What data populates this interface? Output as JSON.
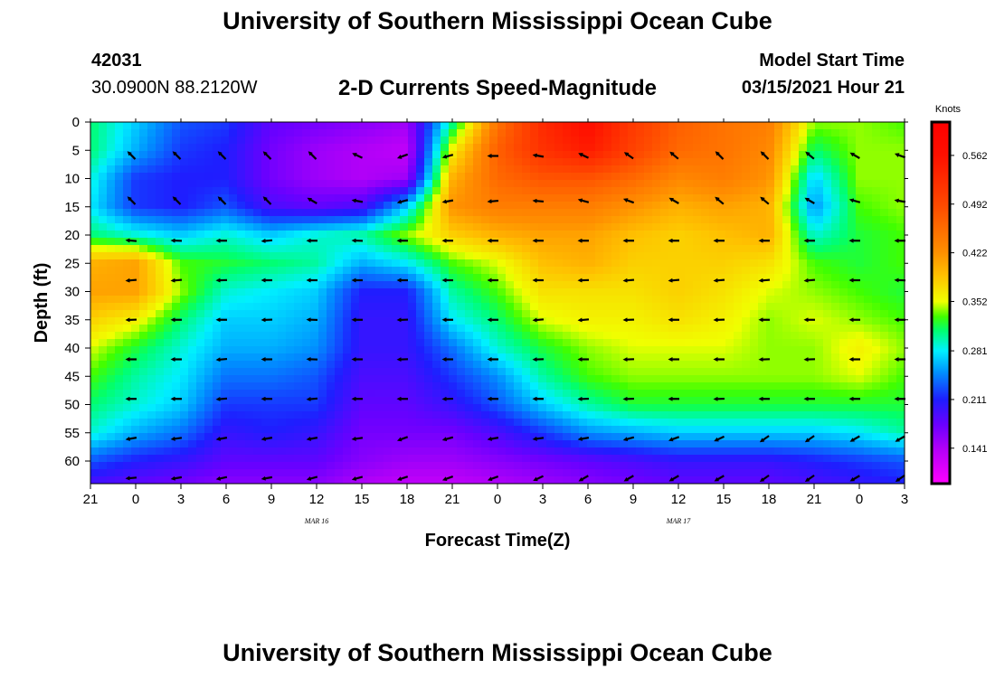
{
  "header": {
    "title": "University of Southern Mississippi Ocean Cube",
    "station_id": "42031",
    "station_coords": "30.0900N 88.2120W",
    "chart_title": "2-D Currents Speed-Magnitude",
    "model_label": "Model Start Time",
    "model_time": "03/15/2021 Hour 21"
  },
  "footer": {
    "title": "University of Southern Mississippi Ocean Cube"
  },
  "chart_data": {
    "type": "heatmap",
    "title": "2-D Currents Speed-Magnitude",
    "xlabel": "Forecast Time(Z)",
    "ylabel": "Depth (ft)",
    "x_ticks": [
      "21",
      "0",
      "3",
      "6",
      "9",
      "12",
      "15",
      "18",
      "21",
      "0",
      "3",
      "6",
      "9",
      "12",
      "15",
      "18",
      "21",
      "0",
      "3"
    ],
    "x_range_hours": [
      0,
      54
    ],
    "date_labels": [
      {
        "label": "MAR 16",
        "hour": 15
      },
      {
        "label": "MAR 17",
        "hour": 39
      }
    ],
    "y_ticks": [
      0,
      5,
      10,
      15,
      20,
      25,
      30,
      35,
      40,
      45,
      50,
      55,
      60
    ],
    "ylim": [
      0,
      64
    ],
    "colorbar": {
      "title": "Knots",
      "ticks": [
        0.562,
        0.492,
        0.422,
        0.352,
        0.281,
        0.211,
        0.141
      ],
      "range": [
        0.09,
        0.61
      ],
      "stops": [
        {
          "v": 0.09,
          "color": "#ff00ff"
        },
        {
          "v": 0.141,
          "color": "#b000f8"
        },
        {
          "v": 0.175,
          "color": "#6a00ff"
        },
        {
          "v": 0.211,
          "color": "#1e1eff"
        },
        {
          "v": 0.25,
          "color": "#0090ff"
        },
        {
          "v": 0.281,
          "color": "#00f0ff"
        },
        {
          "v": 0.31,
          "color": "#00ff70"
        },
        {
          "v": 0.33,
          "color": "#40ff00"
        },
        {
          "v": 0.352,
          "color": "#f0ff00"
        },
        {
          "v": 0.39,
          "color": "#ffc000"
        },
        {
          "v": 0.422,
          "color": "#ff9000"
        },
        {
          "v": 0.492,
          "color": "#ff4800"
        },
        {
          "v": 0.562,
          "color": "#ff1000"
        },
        {
          "v": 0.61,
          "color": "#ff0000"
        }
      ]
    },
    "grid_x_hours": [
      0,
      3,
      6,
      9,
      12,
      15,
      18,
      21,
      24,
      27,
      30,
      33,
      36,
      39,
      42,
      45,
      48,
      51,
      54
    ],
    "grid_y_depths": [
      0,
      5,
      10,
      15,
      20,
      25,
      30,
      35,
      40,
      45,
      50,
      55,
      60,
      64
    ],
    "speed_grid": [
      [
        0.31,
        0.27,
        0.23,
        0.22,
        0.18,
        0.17,
        0.16,
        0.15,
        0.3,
        0.45,
        0.53,
        0.57,
        0.51,
        0.47,
        0.45,
        0.44,
        0.34,
        0.34,
        0.33
      ],
      [
        0.31,
        0.26,
        0.22,
        0.21,
        0.17,
        0.15,
        0.14,
        0.13,
        0.36,
        0.47,
        0.52,
        0.55,
        0.5,
        0.46,
        0.45,
        0.43,
        0.31,
        0.34,
        0.34
      ],
      [
        0.29,
        0.22,
        0.21,
        0.21,
        0.17,
        0.15,
        0.14,
        0.15,
        0.4,
        0.46,
        0.48,
        0.48,
        0.46,
        0.43,
        0.44,
        0.42,
        0.27,
        0.34,
        0.34
      ],
      [
        0.28,
        0.22,
        0.21,
        0.23,
        0.19,
        0.18,
        0.19,
        0.27,
        0.42,
        0.44,
        0.44,
        0.44,
        0.42,
        0.4,
        0.41,
        0.4,
        0.25,
        0.33,
        0.34
      ],
      [
        0.31,
        0.29,
        0.27,
        0.29,
        0.27,
        0.29,
        0.3,
        0.34,
        0.38,
        0.4,
        0.41,
        0.41,
        0.39,
        0.38,
        0.39,
        0.4,
        0.29,
        0.32,
        0.33
      ],
      [
        0.4,
        0.41,
        0.33,
        0.32,
        0.31,
        0.3,
        0.26,
        0.28,
        0.33,
        0.35,
        0.39,
        0.4,
        0.38,
        0.38,
        0.38,
        0.37,
        0.33,
        0.32,
        0.33
      ],
      [
        0.41,
        0.41,
        0.34,
        0.29,
        0.28,
        0.27,
        0.21,
        0.21,
        0.3,
        0.33,
        0.37,
        0.37,
        0.37,
        0.38,
        0.37,
        0.35,
        0.34,
        0.33,
        0.32
      ],
      [
        0.38,
        0.36,
        0.31,
        0.27,
        0.27,
        0.26,
        0.2,
        0.2,
        0.28,
        0.31,
        0.35,
        0.36,
        0.36,
        0.37,
        0.36,
        0.34,
        0.35,
        0.34,
        0.33
      ],
      [
        0.35,
        0.32,
        0.29,
        0.26,
        0.26,
        0.25,
        0.2,
        0.2,
        0.24,
        0.29,
        0.32,
        0.34,
        0.35,
        0.35,
        0.35,
        0.34,
        0.34,
        0.36,
        0.34
      ],
      [
        0.33,
        0.3,
        0.28,
        0.24,
        0.24,
        0.23,
        0.19,
        0.19,
        0.22,
        0.25,
        0.3,
        0.33,
        0.34,
        0.34,
        0.34,
        0.34,
        0.34,
        0.35,
        0.33
      ],
      [
        0.31,
        0.29,
        0.27,
        0.22,
        0.22,
        0.22,
        0.18,
        0.18,
        0.2,
        0.23,
        0.27,
        0.3,
        0.32,
        0.32,
        0.32,
        0.32,
        0.32,
        0.32,
        0.32
      ],
      [
        0.29,
        0.26,
        0.24,
        0.2,
        0.21,
        0.2,
        0.17,
        0.17,
        0.17,
        0.19,
        0.22,
        0.25,
        0.26,
        0.27,
        0.27,
        0.27,
        0.27,
        0.28,
        0.3
      ],
      [
        0.23,
        0.21,
        0.2,
        0.18,
        0.18,
        0.18,
        0.16,
        0.15,
        0.15,
        0.16,
        0.17,
        0.18,
        0.19,
        0.2,
        0.2,
        0.2,
        0.21,
        0.22,
        0.23
      ],
      [
        0.19,
        0.18,
        0.17,
        0.16,
        0.16,
        0.16,
        0.14,
        0.13,
        0.13,
        0.14,
        0.15,
        0.16,
        0.17,
        0.18,
        0.18,
        0.18,
        0.19,
        0.2,
        0.21
      ]
    ],
    "vector_x_hours": [
      3,
      6,
      9,
      12,
      15,
      18,
      21,
      24,
      27,
      30,
      33,
      36,
      39,
      42,
      45,
      48,
      51,
      54
    ],
    "vector_y_depths": [
      6,
      14,
      21,
      28,
      35,
      42,
      49,
      56,
      63
    ],
    "vector_directions_deg": [
      [
        135,
        135,
        135,
        135,
        135,
        155,
        200,
        195,
        180,
        170,
        155,
        145,
        140,
        135,
        135,
        140,
        150,
        160
      ],
      [
        135,
        135,
        135,
        135,
        150,
        170,
        195,
        190,
        185,
        175,
        165,
        160,
        150,
        140,
        140,
        150,
        165,
        170
      ],
      [
        175,
        178,
        180,
        185,
        180,
        178,
        180,
        180,
        180,
        180,
        180,
        180,
        180,
        180,
        180,
        180,
        180,
        180
      ],
      [
        185,
        185,
        182,
        180,
        180,
        180,
        180,
        180,
        180,
        180,
        182,
        185,
        185,
        185,
        185,
        185,
        180,
        178
      ],
      [
        182,
        180,
        180,
        182,
        178,
        180,
        182,
        180,
        180,
        185,
        185,
        182,
        180,
        182,
        180,
        180,
        180,
        180
      ],
      [
        180,
        180,
        185,
        180,
        178,
        180,
        182,
        180,
        180,
        182,
        180,
        182,
        180,
        180,
        182,
        182,
        180,
        180
      ],
      [
        180,
        180,
        185,
        180,
        185,
        180,
        180,
        182,
        180,
        180,
        182,
        182,
        180,
        182,
        180,
        180,
        180,
        180
      ],
      [
        190,
        188,
        190,
        190,
        190,
        188,
        200,
        195,
        190,
        188,
        190,
        195,
        200,
        205,
        215,
        215,
        210,
        210
      ],
      [
        185,
        190,
        192,
        190,
        195,
        195,
        198,
        200,
        200,
        205,
        210,
        210,
        210,
        210,
        215,
        215,
        210,
        215
      ]
    ]
  }
}
